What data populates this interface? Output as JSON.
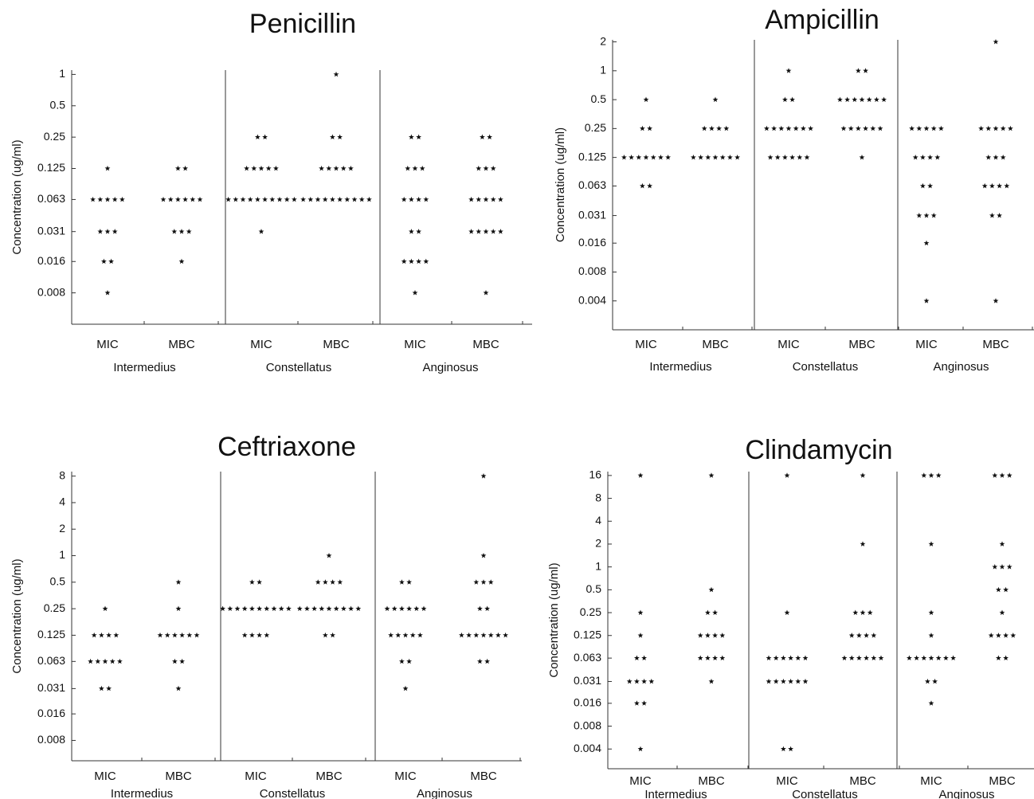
{
  "chart_data": [
    {
      "type": "dot",
      "title": "Penicillin",
      "ylabel": "Concentration (ug/ml)",
      "log_scale": true,
      "ylim": [
        0.004,
        1.1
      ],
      "yticks": [
        1,
        0.5,
        0.25,
        0.125,
        0.063,
        0.031,
        0.016,
        0.008
      ],
      "groups": [
        {
          "name": "Intermedius",
          "columns": [
            {
              "name": "MIC",
              "concentrations": [
                0.125,
                0.063,
                0.031,
                0.016,
                0.008
              ],
              "counts": [
                1,
                5,
                3,
                2,
                1
              ]
            },
            {
              "name": "MBC",
              "concentrations": [
                0.125,
                0.063,
                0.031,
                0.016
              ],
              "counts": [
                2,
                6,
                3,
                1
              ]
            }
          ]
        },
        {
          "name": "Constellatus",
          "columns": [
            {
              "name": "MIC",
              "concentrations": [
                0.25,
                0.125,
                0.063,
                0.031
              ],
              "counts": [
                2,
                5,
                10,
                1
              ]
            },
            {
              "name": "MBC",
              "concentrations": [
                1,
                0.25,
                0.125,
                0.063
              ],
              "counts": [
                1,
                2,
                5,
                10
              ]
            }
          ]
        },
        {
          "name": "Anginosus",
          "columns": [
            {
              "name": "MIC",
              "concentrations": [
                0.25,
                0.125,
                0.063,
                0.031,
                0.016,
                0.008
              ],
              "counts": [
                2,
                3,
                4,
                2,
                4,
                1
              ]
            },
            {
              "name": "MBC",
              "concentrations": [
                0.25,
                0.125,
                0.063,
                0.031,
                0.008
              ],
              "counts": [
                2,
                3,
                5,
                5,
                1
              ]
            }
          ]
        }
      ]
    },
    {
      "type": "dot",
      "title": "Ampicillin",
      "ylabel": "Concentration (ug/ml)",
      "log_scale": true,
      "ylim": [
        0.002,
        2.1
      ],
      "yticks": [
        2,
        1,
        0.5,
        0.25,
        0.125,
        0.063,
        0.031,
        0.016,
        0.008,
        0.004
      ],
      "groups": [
        {
          "name": "Intermedius",
          "columns": [
            {
              "name": "MIC",
              "concentrations": [
                0.5,
                0.25,
                0.125,
                0.063
              ],
              "counts": [
                1,
                2,
                7,
                2
              ]
            },
            {
              "name": "MBC",
              "concentrations": [
                0.5,
                0.25,
                0.125
              ],
              "counts": [
                1,
                4,
                7
              ]
            }
          ]
        },
        {
          "name": "Constellatus",
          "columns": [
            {
              "name": "MIC",
              "concentrations": [
                1,
                0.5,
                0.25,
                0.125
              ],
              "counts": [
                1,
                2,
                7,
                6
              ]
            },
            {
              "name": "MBC",
              "concentrations": [
                1,
                0.5,
                0.25,
                0.125
              ],
              "counts": [
                2,
                7,
                6,
                1
              ]
            }
          ]
        },
        {
          "name": "Anginosus",
          "columns": [
            {
              "name": "MIC",
              "concentrations": [
                0.25,
                0.125,
                0.063,
                0.031,
                0.016,
                0.004
              ],
              "counts": [
                5,
                4,
                2,
                3,
                1,
                1
              ]
            },
            {
              "name": "MBC",
              "concentrations": [
                2,
                0.25,
                0.125,
                0.063,
                0.031,
                0.004
              ],
              "counts": [
                1,
                5,
                3,
                4,
                2,
                1
              ]
            }
          ]
        }
      ]
    },
    {
      "type": "dot",
      "title": "Ceftriaxone",
      "ylabel": "Concentration (ug/ml)",
      "log_scale": true,
      "ylim": [
        0.0047,
        9
      ],
      "yticks": [
        8,
        4,
        2,
        1,
        0.5,
        0.25,
        0.125,
        0.063,
        0.031,
        0.016,
        0.008
      ],
      "groups": [
        {
          "name": "Intermedius",
          "columns": [
            {
              "name": "MIC",
              "concentrations": [
                0.25,
                0.125,
                0.063,
                0.031
              ],
              "counts": [
                1,
                4,
                5,
                2
              ]
            },
            {
              "name": "MBC",
              "concentrations": [
                0.5,
                0.25,
                0.125,
                0.063,
                0.031
              ],
              "counts": [
                1,
                1,
                6,
                2,
                1
              ]
            }
          ]
        },
        {
          "name": "Constellatus",
          "columns": [
            {
              "name": "MIC",
              "concentrations": [
                0.5,
                0.25,
                0.125
              ],
              "counts": [
                2,
                10,
                4
              ]
            },
            {
              "name": "MBC",
              "concentrations": [
                1,
                0.5,
                0.25,
                0.125
              ],
              "counts": [
                1,
                4,
                9,
                2
              ]
            }
          ]
        },
        {
          "name": "Anginosus",
          "columns": [
            {
              "name": "MIC",
              "concentrations": [
                0.5,
                0.25,
                0.125,
                0.063,
                0.031
              ],
              "counts": [
                2,
                6,
                5,
                2,
                1
              ]
            },
            {
              "name": "MBC",
              "concentrations": [
                8,
                1,
                0.5,
                0.25,
                0.125,
                0.063
              ],
              "counts": [
                1,
                1,
                3,
                2,
                7,
                2
              ]
            }
          ]
        }
      ]
    },
    {
      "type": "dot",
      "title": "Clindamycin",
      "ylabel": "Concentration (ug/ml)",
      "log_scale": true,
      "ylim": [
        0.0022,
        18
      ],
      "yticks": [
        16,
        8,
        4,
        2,
        1,
        0.5,
        0.25,
        0.125,
        0.063,
        0.031,
        0.016,
        0.008,
        0.004
      ],
      "groups": [
        {
          "name": "Intermedius",
          "columns": [
            {
              "name": "MIC",
              "concentrations": [
                16,
                0.25,
                0.125,
                0.063,
                0.031,
                0.016,
                0.004
              ],
              "counts": [
                1,
                1,
                1,
                2,
                4,
                2,
                1
              ]
            },
            {
              "name": "MBC",
              "concentrations": [
                16,
                0.5,
                0.25,
                0.125,
                0.063,
                0.031
              ],
              "counts": [
                1,
                1,
                2,
                4,
                4,
                1
              ]
            }
          ]
        },
        {
          "name": "Constellatus",
          "columns": [
            {
              "name": "MIC",
              "concentrations": [
                16,
                0.25,
                0.063,
                0.031,
                0.004
              ],
              "counts": [
                1,
                1,
                6,
                6,
                2
              ]
            },
            {
              "name": "MBC",
              "concentrations": [
                16,
                2,
                0.25,
                0.125,
                0.063
              ],
              "counts": [
                1,
                1,
                3,
                4,
                6
              ]
            }
          ]
        },
        {
          "name": "Anginosus",
          "columns": [
            {
              "name": "MIC",
              "concentrations": [
                16,
                2,
                0.25,
                0.125,
                0.063,
                0.031,
                0.016
              ],
              "counts": [
                3,
                1,
                1,
                1,
                7,
                2,
                1
              ]
            },
            {
              "name": "MBC",
              "concentrations": [
                16,
                2,
                1,
                0.5,
                0.25,
                0.125,
                0.063
              ],
              "counts": [
                3,
                1,
                3,
                2,
                1,
                4,
                2
              ]
            }
          ]
        }
      ]
    }
  ]
}
